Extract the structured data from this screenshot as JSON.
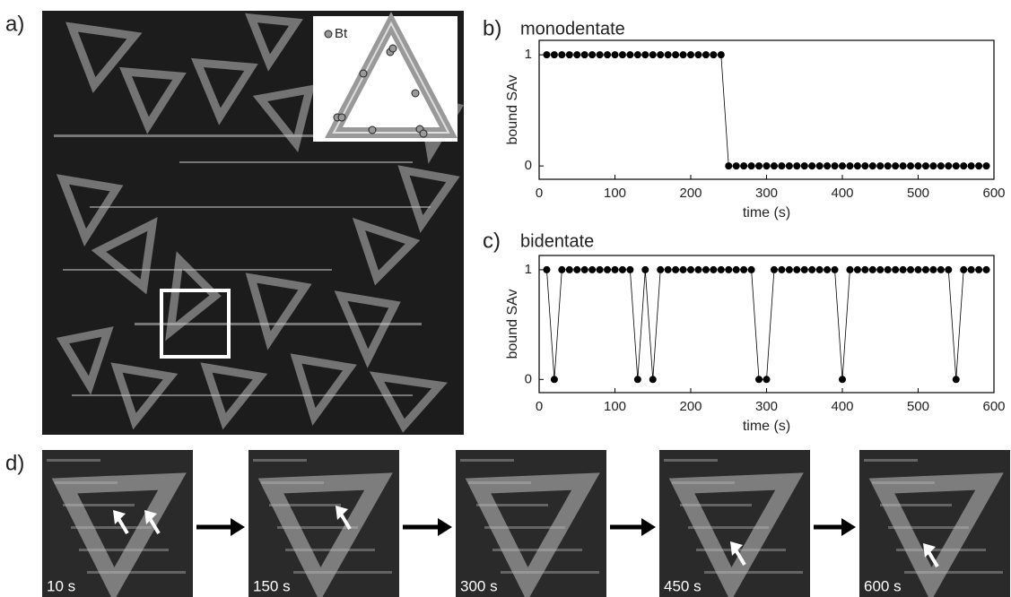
{
  "panels": {
    "a": {
      "label": "a)",
      "inset_legend": "Bt"
    },
    "d": {
      "label": "d)",
      "frames": [
        "10 s",
        "150 s",
        "300 s",
        "450 s",
        "600 s"
      ]
    }
  },
  "chart_data": [
    {
      "type": "line",
      "panel_label": "b)",
      "title": "monodentate",
      "x_label": "time (s)",
      "y_label": "bound SAv",
      "color": "#000000",
      "x": [
        10,
        20,
        30,
        40,
        50,
        60,
        70,
        80,
        90,
        100,
        110,
        120,
        130,
        140,
        150,
        160,
        170,
        180,
        190,
        200,
        210,
        220,
        230,
        240,
        250,
        260,
        270,
        280,
        290,
        300,
        310,
        320,
        330,
        340,
        350,
        360,
        370,
        380,
        390,
        400,
        410,
        420,
        430,
        440,
        450,
        460,
        470,
        480,
        490,
        500,
        510,
        520,
        530,
        540,
        550,
        560,
        570,
        580,
        590
      ],
      "values": [
        1,
        1,
        1,
        1,
        1,
        1,
        1,
        1,
        1,
        1,
        1,
        1,
        1,
        1,
        1,
        1,
        1,
        1,
        1,
        1,
        1,
        1,
        1,
        1,
        0,
        0,
        0,
        0,
        0,
        0,
        0,
        0,
        0,
        0,
        0,
        0,
        0,
        0,
        0,
        0,
        0,
        0,
        0,
        0,
        0,
        0,
        0,
        0,
        0,
        0,
        0,
        0,
        0,
        0,
        0,
        0,
        0,
        0,
        0
      ],
      "xlim": [
        0,
        600
      ],
      "xticks": [
        0,
        100,
        200,
        300,
        400,
        500,
        600
      ],
      "ylim": [
        -0.12,
        1.13
      ],
      "yticks": [
        0,
        1
      ]
    },
    {
      "type": "line",
      "panel_label": "c)",
      "title": "bidentate",
      "x_label": "time (s)",
      "y_label": "bound SAv",
      "color": "#000000",
      "x": [
        10,
        20,
        30,
        40,
        50,
        60,
        70,
        80,
        90,
        100,
        110,
        120,
        130,
        140,
        150,
        160,
        170,
        180,
        190,
        200,
        210,
        220,
        230,
        240,
        250,
        260,
        270,
        280,
        290,
        300,
        310,
        320,
        330,
        340,
        350,
        360,
        370,
        380,
        390,
        400,
        410,
        420,
        430,
        440,
        450,
        460,
        470,
        480,
        490,
        500,
        510,
        520,
        530,
        540,
        550,
        560,
        570,
        580,
        590
      ],
      "values": [
        1,
        0,
        1,
        1,
        1,
        1,
        1,
        1,
        1,
        1,
        1,
        1,
        0,
        1,
        0,
        1,
        1,
        1,
        1,
        1,
        1,
        1,
        1,
        1,
        1,
        1,
        1,
        1,
        0,
        0,
        1,
        1,
        1,
        1,
        1,
        1,
        1,
        1,
        1,
        0,
        1,
        1,
        1,
        1,
        1,
        1,
        1,
        1,
        1,
        1,
        1,
        1,
        1,
        1,
        0,
        1,
        1,
        1,
        1
      ],
      "xlim": [
        0,
        600
      ],
      "xticks": [
        0,
        100,
        200,
        300,
        400,
        500,
        600
      ],
      "ylim": [
        -0.12,
        1.13
      ],
      "yticks": [
        0,
        1
      ]
    }
  ]
}
